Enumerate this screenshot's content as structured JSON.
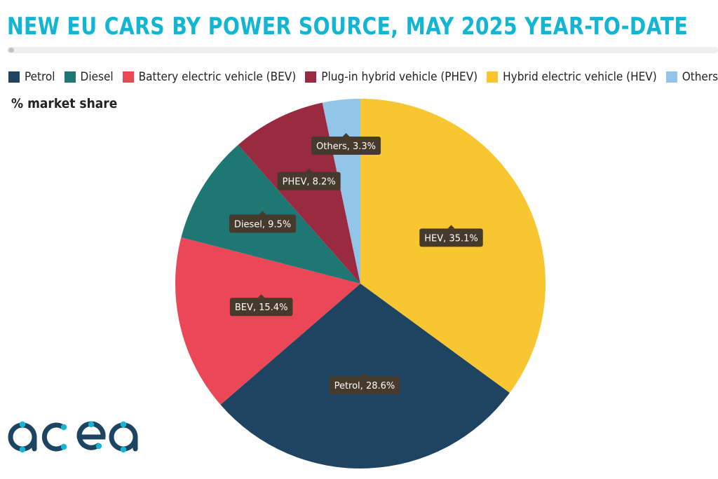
{
  "title": "NEW EU CARS BY POWER SOURCE, MAY 2025 YEAR-TO-DATE",
  "subtitle": "% market share",
  "logo_text": "acea",
  "colors": {
    "title": "#12b6d3",
    "petrol": "#1e4461",
    "diesel": "#1f7774",
    "bev": "#ec4756",
    "phev": "#9a2a40",
    "hev": "#f8c630",
    "others": "#92c5e8",
    "tooltip_bg": "#463a2d",
    "logo_dark": "#1e4461",
    "logo_accent": "#12b6d3"
  },
  "legend": [
    {
      "label": "Petrol",
      "color": "#1e4461"
    },
    {
      "label": "Diesel",
      "color": "#1f7774"
    },
    {
      "label": "Battery electric vehicle (BEV)",
      "color": "#ec4756"
    },
    {
      "label": "Plug-in hybrid vehicle (PHEV)",
      "color": "#9a2a40"
    },
    {
      "label": "Hybrid electric vehicle (HEV)",
      "color": "#f8c630"
    },
    {
      "label": "Others",
      "color": "#92c5e8"
    }
  ],
  "chart_data": {
    "type": "pie",
    "title": "NEW EU CARS BY POWER SOURCE, MAY 2025 YEAR-TO-DATE",
    "subtitle": "% market share",
    "unit": "%",
    "legend_position": "top",
    "start": "top, clockwise",
    "slices": [
      {
        "name": "HEV",
        "value": 35.1,
        "label": "HEV, 35.1%",
        "color": "#f8c630"
      },
      {
        "name": "Petrol",
        "value": 28.6,
        "label": "Petrol, 28.6%",
        "color": "#1e4461"
      },
      {
        "name": "BEV",
        "value": 15.4,
        "label": "BEV, 15.4%",
        "color": "#ec4756"
      },
      {
        "name": "Diesel",
        "value": 9.5,
        "label": "Diesel, 9.5%",
        "color": "#1f7774"
      },
      {
        "name": "PHEV",
        "value": 8.2,
        "label": "PHEV, 8.2%",
        "color": "#9a2a40"
      },
      {
        "name": "Others",
        "value": 3.3,
        "label": "Others, 3.3%",
        "color": "#92c5e8"
      }
    ]
  }
}
